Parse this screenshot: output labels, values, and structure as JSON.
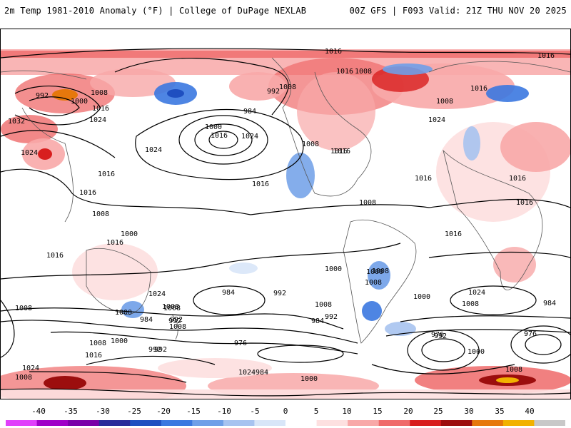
{
  "header": {
    "left_title": "2m Temp 1981-2010 Anomaly (°F) | College of DuPage NEXLAB",
    "right_title": "00Z GFS | F093 Valid: 21Z THU NOV 20 2025"
  },
  "colorbar": {
    "ticks": [
      "-40",
      "-35",
      "-30",
      "-25",
      "-20",
      "-15",
      "-10",
      "-5",
      "0",
      "5",
      "10",
      "15",
      "20",
      "25",
      "30",
      "35",
      "40"
    ],
    "colors": [
      "#e040fb",
      "#a000c8",
      "#7a00a8",
      "#2a2a9a",
      "#1f4fc0",
      "#3b78e0",
      "#6f9fe8",
      "#a7c3f0",
      "#d8e6f8",
      "#ffffff",
      "#fde0e0",
      "#f8a8a8",
      "#ef6a6a",
      "#d81e1e",
      "#9c0e0e",
      "#e6780c",
      "#f2b200",
      "#c8c8c8"
    ]
  },
  "isobar_labels": [
    {
      "text": "1016"
    },
    {
      "text": "1016"
    },
    {
      "text": "1016"
    },
    {
      "text": "1008"
    },
    {
      "text": "984"
    },
    {
      "text": "1024"
    },
    {
      "text": "1008"
    },
    {
      "text": "992"
    },
    {
      "text": "1000"
    },
    {
      "text": "1016"
    },
    {
      "text": "1024"
    },
    {
      "text": "1032"
    },
    {
      "text": "1024"
    },
    {
      "text": "1024"
    },
    {
      "text": "1016"
    },
    {
      "text": "1000"
    },
    {
      "text": "1016"
    },
    {
      "text": "1024"
    },
    {
      "text": "1008"
    },
    {
      "text": "1016"
    },
    {
      "text": "1016"
    },
    {
      "text": "992"
    },
    {
      "text": "1008"
    },
    {
      "text": "1016"
    },
    {
      "text": "1016"
    },
    {
      "text": "1008"
    },
    {
      "text": "1008"
    },
    {
      "text": "1016"
    },
    {
      "text": "1016"
    },
    {
      "text": "1016"
    },
    {
      "text": "1016"
    },
    {
      "text": "1008"
    },
    {
      "text": "1016"
    },
    {
      "text": "1024"
    },
    {
      "text": "1000"
    },
    {
      "text": "1008"
    },
    {
      "text": "1000"
    },
    {
      "text": "1008"
    },
    {
      "text": "992"
    },
    {
      "text": "984"
    },
    {
      "text": "992"
    },
    {
      "text": "1000"
    },
    {
      "text": "1008"
    },
    {
      "text": "1000"
    },
    {
      "text": "1008"
    },
    {
      "text": "1016"
    },
    {
      "text": "1000"
    },
    {
      "text": "1008"
    },
    {
      "text": "1016"
    },
    {
      "text": "1024"
    },
    {
      "text": "1008"
    },
    {
      "text": "992"
    },
    {
      "text": "984"
    },
    {
      "text": "976"
    },
    {
      "text": "992"
    },
    {
      "text": "1008"
    },
    {
      "text": "984"
    },
    {
      "text": "992"
    },
    {
      "text": "1024"
    },
    {
      "text": "976"
    },
    {
      "text": "984"
    },
    {
      "text": "976"
    },
    {
      "text": "992"
    },
    {
      "text": "1000"
    },
    {
      "text": "1008"
    },
    {
      "text": "1000"
    },
    {
      "text": "1008"
    },
    {
      "text": "1008"
    },
    {
      "text": "1016"
    },
    {
      "text": "1024"
    },
    {
      "text": "984"
    },
    {
      "text": "1000"
    },
    {
      "text": "1008"
    },
    {
      "text": "992"
    }
  ]
}
